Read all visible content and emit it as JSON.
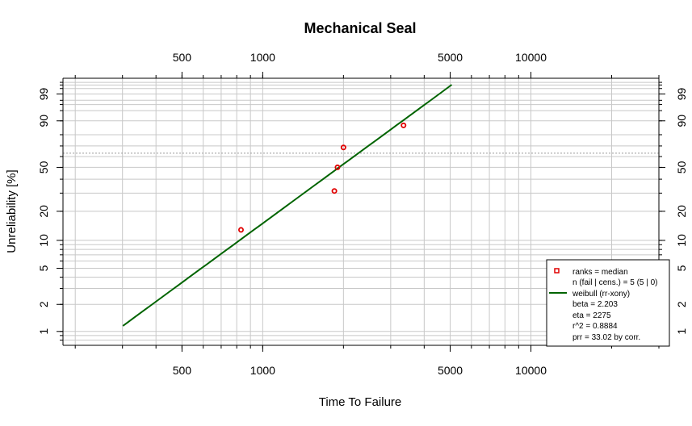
{
  "chart_data": {
    "type": "scatter",
    "title": "Mechanical Seal",
    "xlabel": "Time To Failure",
    "ylabel": "Unreliability [%]",
    "x_scale": "log",
    "y_scale": "weibull",
    "xlim": [
      180,
      30000
    ],
    "ylim": [
      0.7,
      99.9
    ],
    "grid": true,
    "x_ticks": [
      500,
      1000,
      5000,
      10000
    ],
    "x_tick_labels": [
      "500",
      "1000",
      "5000",
      "10000"
    ],
    "y_ticks": [
      1,
      2,
      5,
      10,
      20,
      50,
      90,
      99
    ],
    "y_tick_labels": [
      "1",
      "2",
      "5",
      "10",
      "20",
      "50",
      "90",
      "99"
    ],
    "reference_line_y": 63.2,
    "series": [
      {
        "name": "ranks = median",
        "kind": "points",
        "color": "#e00000",
        "x": [
          830,
          1850,
          1900,
          2000,
          3350
        ],
        "y": [
          12.9,
          31.4,
          50.0,
          68.6,
          87.1
        ]
      },
      {
        "name": "weibull (rr-xony)",
        "kind": "fit-line",
        "color": "#006400",
        "beta": 2.203,
        "eta": 2275,
        "x_range": [
          301,
          5070
        ]
      }
    ],
    "legend": {
      "position": "bottom-right",
      "lines": [
        "ranks = median",
        "n (fail | cens.) = 5 (5 | 0)",
        "weibull (rr-xony)",
        "beta = 2.203",
        "eta = 2275",
        "r^2 = 0.8884",
        "prr = 33.02 by corr."
      ]
    }
  }
}
